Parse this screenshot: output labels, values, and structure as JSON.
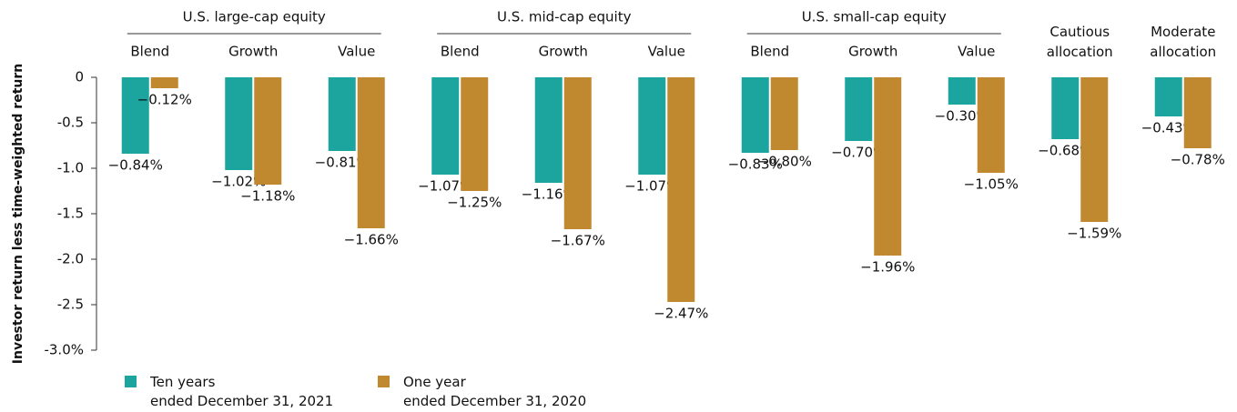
{
  "chart_data": {
    "type": "bar",
    "y_label": "Investor return less time-weighted return",
    "groups": [
      {
        "name": "U.S. large-cap equity",
        "categories": [
          "Blend",
          "Growth",
          "Value"
        ]
      },
      {
        "name": "U.S. mid-cap equity",
        "categories": [
          "Blend",
          "Growth",
          "Value"
        ]
      },
      {
        "name": "U.S. small-cap equity",
        "categories": [
          "Blend",
          "Growth",
          "Value"
        ]
      },
      {
        "categories": [
          "Cautious\nallocation"
        ]
      },
      {
        "categories": [
          "Moderate\nallocation"
        ]
      }
    ],
    "series": [
      {
        "name": "Ten years\nended December 31, 2021",
        "color": "#1ca59f",
        "values": [
          -0.84,
          -1.02,
          -0.81,
          -1.07,
          -1.16,
          -1.07,
          -0.83,
          -0.7,
          -0.3,
          -0.68,
          -0.43
        ],
        "value_labels": [
          "−0.84%",
          "−1.02%",
          "−0.81%",
          "−1.07%",
          "−1.16%",
          "−1.07%",
          "−0.83%",
          "−0.70%",
          "−0.30%",
          "−0.68%",
          "−0.43%"
        ]
      },
      {
        "name": "One year\nended December 31, 2020",
        "color": "#c0892f",
        "values": [
          -0.12,
          -1.18,
          -1.66,
          -1.25,
          -1.67,
          -2.47,
          -0.8,
          -1.96,
          -1.05,
          -1.59,
          -0.78
        ],
        "value_labels": [
          "−0.12%",
          "−1.18%",
          "−1.66%",
          "−1.25%",
          "−1.67%",
          "−2.47%",
          "−0.80%",
          "−1.96%",
          "−1.05%",
          "−1.59%",
          "−0.78%"
        ]
      }
    ],
    "ylim": [
      -3,
      0
    ],
    "yticks": [
      0,
      -0.5,
      {
        "value": -1,
        "label": "-1.0"
      },
      -1.5,
      {
        "value": -2,
        "label": "-2.0"
      },
      -2.5,
      {
        "value": -3,
        "label": "-3.0%"
      }
    ]
  }
}
